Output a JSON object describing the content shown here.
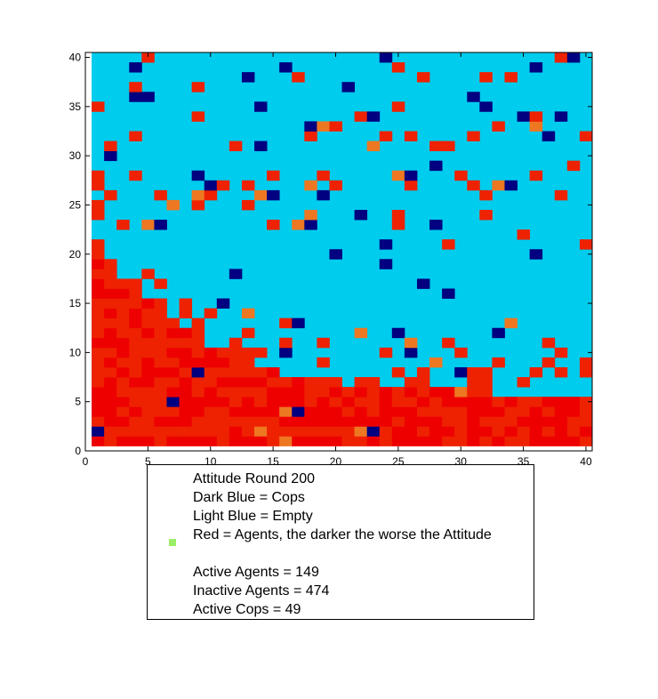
{
  "chart_data": {
    "type": "heatmap",
    "title": "",
    "xlabel": "",
    "ylabel": "",
    "xlim": [
      0,
      40.5
    ],
    "ylim": [
      0,
      40.5
    ],
    "x_ticks": [
      0,
      5,
      10,
      15,
      20,
      25,
      30,
      35,
      40
    ],
    "y_ticks": [
      0,
      5,
      10,
      15,
      20,
      25,
      30,
      35,
      40
    ],
    "grid_size": 40,
    "grid": false,
    "colors": {
      "empty": "#00ccee",
      "cop": "#000080",
      "agent_light": "#ee7722",
      "agent": "#ee2200",
      "agent_dark": "#ee0000"
    },
    "cells_note": "Each cell is a 1x1 unit; red shades are agents (darker = worse attitude).",
    "cops": [
      [
        4,
        39
      ],
      [
        16,
        39
      ],
      [
        24,
        40
      ],
      [
        39,
        40
      ],
      [
        36,
        39
      ],
      [
        13,
        38
      ],
      [
        21,
        37
      ],
      [
        4,
        36
      ],
      [
        31,
        36
      ],
      [
        32,
        35
      ],
      [
        14,
        35
      ],
      [
        23,
        34
      ],
      [
        35,
        34
      ],
      [
        18,
        33
      ],
      [
        37,
        32
      ],
      [
        2,
        30
      ],
      [
        28,
        29
      ],
      [
        9,
        28
      ],
      [
        26,
        28
      ],
      [
        34,
        27
      ],
      [
        15,
        26
      ],
      [
        19,
        26
      ],
      [
        22,
        24
      ],
      [
        18,
        23
      ],
      [
        6,
        23
      ],
      [
        28,
        23
      ],
      [
        24,
        21
      ],
      [
        20,
        20
      ],
      [
        36,
        20
      ],
      [
        24,
        19
      ],
      [
        27,
        17
      ],
      [
        11,
        15
      ],
      [
        17,
        13
      ],
      [
        16,
        10
      ],
      [
        26,
        10
      ],
      [
        9,
        8
      ],
      [
        30,
        8
      ],
      [
        7,
        5
      ],
      [
        17,
        4
      ],
      [
        1,
        2
      ],
      [
        23,
        2
      ],
      [
        12,
        18
      ],
      [
        33,
        12
      ],
      [
        5,
        36
      ],
      [
        14,
        31
      ],
      [
        38,
        34
      ],
      [
        10,
        27
      ],
      [
        29,
        16
      ],
      [
        25,
        12
      ]
    ],
    "orange_cells": [
      [
        36,
        33
      ],
      [
        19,
        33
      ],
      [
        23,
        31
      ],
      [
        9,
        26
      ],
      [
        18,
        27
      ],
      [
        14,
        26
      ],
      [
        25,
        28
      ],
      [
        33,
        27
      ],
      [
        18,
        24
      ],
      [
        17,
        23
      ],
      [
        5,
        23
      ],
      [
        13,
        14
      ],
      [
        22,
        12
      ],
      [
        26,
        11
      ],
      [
        28,
        9
      ],
      [
        30,
        6
      ],
      [
        16,
        4
      ],
      [
        14,
        2
      ],
      [
        22,
        2
      ],
      [
        16,
        1
      ],
      [
        7,
        25
      ],
      [
        34,
        13
      ]
    ],
    "red_cells_above_front": [
      [
        5,
        40
      ],
      [
        38,
        40
      ],
      [
        25,
        39
      ],
      [
        4,
        37
      ],
      [
        9,
        37
      ],
      [
        17,
        38
      ],
      [
        27,
        38
      ],
      [
        32,
        38
      ],
      [
        34,
        38
      ],
      [
        1,
        35
      ],
      [
        14,
        35
      ],
      [
        25,
        35
      ],
      [
        9,
        34
      ],
      [
        22,
        34
      ],
      [
        36,
        34
      ],
      [
        33,
        33
      ],
      [
        20,
        33
      ],
      [
        26,
        32
      ],
      [
        4,
        32
      ],
      [
        18,
        32
      ],
      [
        24,
        32
      ],
      [
        28,
        31
      ],
      [
        31,
        32
      ],
      [
        40,
        32
      ],
      [
        2,
        31
      ],
      [
        12,
        31
      ],
      [
        29,
        31
      ],
      [
        39,
        29
      ],
      [
        1,
        28
      ],
      [
        4,
        28
      ],
      [
        15,
        28
      ],
      [
        19,
        28
      ],
      [
        30,
        28
      ],
      [
        36,
        28
      ],
      [
        11,
        27
      ],
      [
        13,
        27
      ],
      [
        20,
        27
      ],
      [
        26,
        27
      ],
      [
        31,
        27
      ],
      [
        2,
        26
      ],
      [
        6,
        26
      ],
      [
        10,
        26
      ],
      [
        32,
        26
      ],
      [
        38,
        26
      ],
      [
        1,
        25
      ],
      [
        9,
        25
      ],
      [
        13,
        25
      ],
      [
        25,
        24
      ],
      [
        32,
        24
      ],
      [
        3,
        23
      ],
      [
        15,
        23
      ],
      [
        25,
        23
      ],
      [
        35,
        22
      ],
      [
        40,
        21
      ],
      [
        29,
        21
      ]
    ],
    "red_front_profile": [
      21,
      19,
      17,
      16,
      15,
      14,
      13,
      12,
      11,
      10,
      9,
      9,
      8,
      8,
      8,
      7,
      7,
      7,
      7,
      6,
      6,
      6,
      6,
      6,
      6,
      6,
      6,
      6,
      6,
      5,
      5,
      5,
      5,
      5,
      5,
      5,
      5,
      5,
      5,
      5
    ]
  },
  "legend": {
    "title": "Attitude Round 200",
    "lines": [
      "Attitude Round 200",
      "Dark Blue = Cops",
      "Light Blue = Empty",
      "Red = Agents, the darker the worse the Attitude",
      "",
      "Active Agents = 149",
      "Inactive Agents = 474",
      "Active Cops = 49"
    ],
    "marker_color": "#99ee66",
    "placement": "bottom-center, outside axes"
  }
}
